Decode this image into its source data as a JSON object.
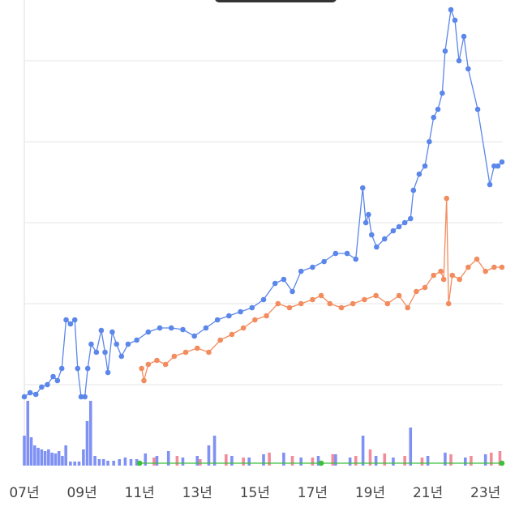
{
  "chart_data": {
    "type": "line",
    "xlim": [
      2007,
      2023.6
    ],
    "ylim": [
      0,
      575
    ],
    "gridlines": [
      100,
      200,
      300,
      400,
      500
    ],
    "xticks": [
      {
        "value": 2007,
        "label": "07년"
      },
      {
        "value": 2009,
        "label": "09년"
      },
      {
        "value": 2011,
        "label": "11년"
      },
      {
        "value": 2013,
        "label": "13년"
      },
      {
        "value": 2015,
        "label": "15년"
      },
      {
        "value": 2017,
        "label": "17년"
      },
      {
        "value": 2019,
        "label": "19년"
      },
      {
        "value": 2021,
        "label": "21년"
      },
      {
        "value": 2023,
        "label": "23년"
      }
    ],
    "bars": [
      {
        "color": "#6a7ef2",
        "x": [
          2007.0,
          2007.12,
          2007.24,
          2007.36,
          2007.48,
          2007.6,
          2007.72,
          2007.84,
          2007.96,
          2008.08,
          2008.2,
          2008.32,
          2008.44,
          2008.6,
          2008.75,
          2008.9,
          2009.05,
          2009.18,
          2009.3,
          2009.45,
          2009.6,
          2009.75,
          2009.9,
          2010.1,
          2010.3,
          2010.5,
          2010.7,
          2010.9,
          2011.2,
          2011.6,
          2012.0,
          2012.5,
          2013.0,
          2013.4,
          2013.6,
          2014.2,
          2014.8,
          2015.3,
          2016.0,
          2016.6,
          2017.2,
          2017.8,
          2018.3,
          2018.75,
          2019.2,
          2019.8,
          2020.4,
          2021.0,
          2021.6,
          2022.3,
          2023.0
        ],
        "values": [
          37,
          80,
          35,
          25,
          22,
          20,
          18,
          20,
          16,
          15,
          18,
          12,
          25,
          5,
          5,
          5,
          20,
          55,
          80,
          12,
          8,
          8,
          6,
          6,
          8,
          10,
          8,
          8,
          15,
          12,
          18,
          10,
          12,
          25,
          37,
          12,
          10,
          14,
          16,
          10,
          12,
          14,
          10,
          37,
          12,
          10,
          47,
          12,
          16,
          10,
          14
        ]
      },
      {
        "color": "#f0788a",
        "x": [
          2011.5,
          2012.3,
          2013.1,
          2014.0,
          2014.6,
          2015.5,
          2016.3,
          2017.0,
          2017.7,
          2018.5,
          2019.0,
          2019.5,
          2020.2,
          2020.8,
          2021.8,
          2022.5,
          2023.2,
          2023.5
        ],
        "values": [
          10,
          12,
          8,
          14,
          10,
          16,
          12,
          10,
          14,
          12,
          20,
          15,
          12,
          10,
          14,
          12,
          16,
          18
        ]
      }
    ],
    "series": [
      {
        "color": "#5b86ea",
        "x": [
          2007.0,
          2007.2,
          2007.4,
          2007.6,
          2007.8,
          2008.0,
          2008.15,
          2008.3,
          2008.45,
          2008.6,
          2008.75,
          2008.85,
          2008.97,
          2009.1,
          2009.2,
          2009.32,
          2009.5,
          2009.67,
          2009.8,
          2009.9,
          2010.05,
          2010.2,
          2010.37,
          2010.6,
          2010.9,
          2011.3,
          2011.7,
          2012.1,
          2012.5,
          2012.9,
          2013.3,
          2013.7,
          2014.1,
          2014.5,
          2014.9,
          2015.3,
          2015.7,
          2016.0,
          2016.3,
          2016.6,
          2017.0,
          2017.4,
          2017.8,
          2018.2,
          2018.5,
          2018.74,
          2018.85,
          2018.94,
          2019.05,
          2019.22,
          2019.5,
          2019.8,
          2020.0,
          2020.2,
          2020.4,
          2020.5,
          2020.7,
          2020.9,
          2021.05,
          2021.2,
          2021.35,
          2021.5,
          2021.6,
          2021.8,
          2021.94,
          2022.08,
          2022.25,
          2022.4,
          2022.73,
          2023.15,
          2023.3,
          2023.43,
          2023.57
        ],
        "values": [
          85,
          90,
          88,
          97,
          100,
          110,
          105,
          120,
          180,
          175,
          180,
          120,
          85,
          85,
          120,
          150,
          140,
          167,
          140,
          115,
          165,
          150,
          135,
          150,
          155,
          165,
          170,
          170,
          168,
          160,
          170,
          180,
          185,
          190,
          195,
          205,
          225,
          230,
          215,
          240,
          245,
          252,
          262,
          262,
          255,
          343,
          300,
          310,
          285,
          270,
          280,
          290,
          295,
          300,
          305,
          340,
          360,
          370,
          400,
          430,
          440,
          460,
          512,
          563,
          550,
          500,
          530,
          490,
          440,
          347,
          370,
          370,
          375
        ]
      },
      {
        "color": "#f28c5e",
        "x": [
          2011.07,
          2011.15,
          2011.3,
          2011.6,
          2011.9,
          2012.2,
          2012.6,
          2013.0,
          2013.4,
          2013.8,
          2014.2,
          2014.6,
          2015.0,
          2015.4,
          2015.8,
          2016.2,
          2016.6,
          2017.0,
          2017.3,
          2017.6,
          2018.0,
          2018.4,
          2018.8,
          2019.2,
          2019.6,
          2020.0,
          2020.3,
          2020.6,
          2020.9,
          2021.2,
          2021.45,
          2021.55,
          2021.65,
          2021.72,
          2021.85,
          2022.1,
          2022.4,
          2022.7,
          2023.0,
          2023.3,
          2023.57
        ],
        "values": [
          120,
          105,
          125,
          130,
          125,
          135,
          140,
          145,
          140,
          155,
          162,
          170,
          180,
          185,
          200,
          195,
          200,
          205,
          210,
          200,
          195,
          200,
          205,
          210,
          200,
          210,
          195,
          215,
          220,
          235,
          240,
          230,
          330,
          200,
          235,
          230,
          245,
          255,
          240,
          245,
          245
        ]
      },
      {
        "color": "#3cbf3c",
        "x": [
          2011.0,
          2017.3,
          2023.57
        ],
        "values": [
          3,
          3,
          3
        ]
      }
    ]
  }
}
